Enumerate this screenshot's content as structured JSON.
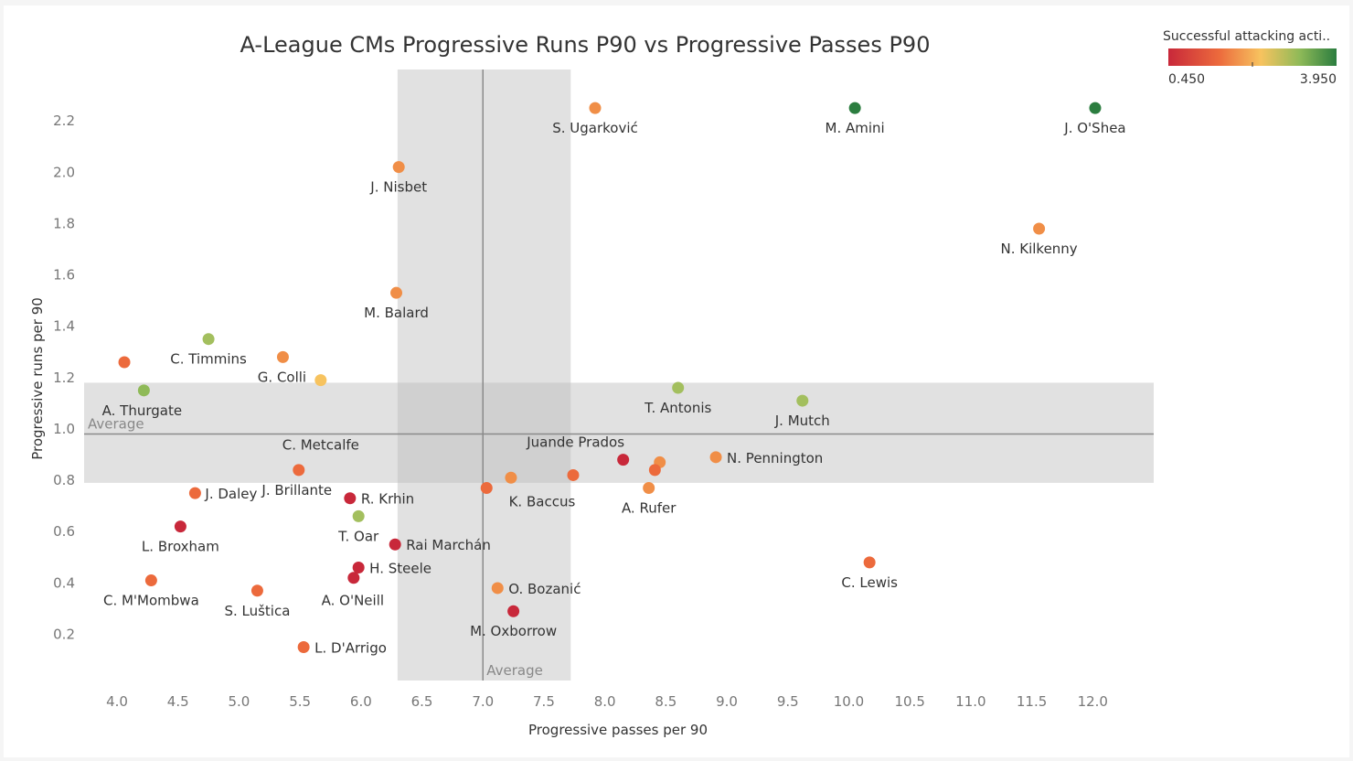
{
  "chart_data": {
    "type": "scatter",
    "title": "A-League CMs Progressive Runs P90 vs Progressive Passes P90",
    "xlabel": "Progressive passes per 90",
    "ylabel": "Progressive runs per 90",
    "xlim": [
      3.7,
      12.5
    ],
    "ylim": [
      0.02,
      2.4
    ],
    "x_ticks": [
      "4.0",
      "4.5",
      "5.0",
      "5.5",
      "6.0",
      "6.5",
      "7.0",
      "7.5",
      "8.0",
      "8.5",
      "9.0",
      "9.5",
      "10.0",
      "10.5",
      "11.0",
      "11.5",
      "12.0"
    ],
    "y_ticks": [
      "0.2",
      "0.4",
      "0.6",
      "0.8",
      "1.0",
      "1.2",
      "1.4",
      "1.6",
      "1.8",
      "2.0",
      "2.2"
    ],
    "x_average": 7.0,
    "y_average": 0.98,
    "x_band": [
      6.3,
      7.72
    ],
    "y_band": [
      0.79,
      1.18
    ],
    "average_label": "Average",
    "legend": {
      "title": "Successful attacking acti..",
      "min_label": "0.450",
      "max_label": "3.950",
      "colors": [
        "#c8283a",
        "#ec6a3c",
        "#f7c35f",
        "#8fba58",
        "#2b7d3f"
      ]
    },
    "points": [
      {
        "name": "S. Ugarković",
        "x": 7.92,
        "y": 2.25,
        "color": "#f08e47",
        "label": "S. Ugarković"
      },
      {
        "name": "M. Amini",
        "x": 10.05,
        "y": 2.25,
        "color": "#2b7d3f",
        "label": "M. Amini"
      },
      {
        "name": "J. O'Shea",
        "x": 12.02,
        "y": 2.25,
        "color": "#2b7d3f",
        "label": "J. O'Shea"
      },
      {
        "name": "J. Nisbet",
        "x": 6.31,
        "y": 2.02,
        "color": "#f08e47",
        "label": "J. Nisbet"
      },
      {
        "name": "N. Kilkenny",
        "x": 11.56,
        "y": 1.78,
        "color": "#f08e47",
        "label": "N. Kilkenny"
      },
      {
        "name": "M. Balard",
        "x": 6.29,
        "y": 1.53,
        "color": "#f08e47",
        "label": "M. Balard"
      },
      {
        "name": "C. Timmins",
        "x": 4.75,
        "y": 1.35,
        "color": "#a3bf5e",
        "label": "C. Timmins"
      },
      {
        "name": "",
        "x": 4.06,
        "y": 1.26,
        "color": "#ec6a3c",
        "label": ""
      },
      {
        "name": "G. Colli",
        "x": 5.36,
        "y": 1.28,
        "color": "#f08e47",
        "label": "G. Colli"
      },
      {
        "name": "C. Metcalfe",
        "x": 5.67,
        "y": 1.19,
        "color": "#f7c35f",
        "label": "C. Metcalfe"
      },
      {
        "name": "A. Thurgate",
        "x": 4.22,
        "y": 1.15,
        "color": "#8fba58",
        "label": "A. Thurgate"
      },
      {
        "name": "T. Antonis",
        "x": 8.6,
        "y": 1.16,
        "color": "#a3bf5e",
        "label": "T. Antonis"
      },
      {
        "name": "J. Mutch",
        "x": 9.62,
        "y": 1.11,
        "color": "#a3bf5e",
        "label": "J. Mutch"
      },
      {
        "name": "Juande Prados",
        "x": 8.15,
        "y": 0.88,
        "color": "#c8283a",
        "label": "Juande Prados"
      },
      {
        "name": "N. Pennington",
        "x": 8.91,
        "y": 0.89,
        "color": "#f08e47",
        "label": "N. Pennington"
      },
      {
        "name": "",
        "x": 8.45,
        "y": 0.87,
        "color": "#f08e47",
        "label": ""
      },
      {
        "name": "",
        "x": 8.41,
        "y": 0.84,
        "color": "#ec6a3c",
        "label": ""
      },
      {
        "name": "",
        "x": 7.74,
        "y": 0.82,
        "color": "#ec6a3c",
        "label": ""
      },
      {
        "name": "K. Baccus",
        "x": 7.23,
        "y": 0.81,
        "color": "#f08e47",
        "label": "K. Baccus"
      },
      {
        "name": "",
        "x": 7.03,
        "y": 0.77,
        "color": "#ec6a3c",
        "label": ""
      },
      {
        "name": "A. Rufer",
        "x": 8.36,
        "y": 0.77,
        "color": "#f08e47",
        "label": "A. Rufer"
      },
      {
        "name": "J. Brillante",
        "x": 5.49,
        "y": 0.84,
        "color": "#ec6a3c",
        "label": "J. Brillante"
      },
      {
        "name": "J. Daley",
        "x": 4.64,
        "y": 0.75,
        "color": "#ec6a3c",
        "label": "J. Daley"
      },
      {
        "name": "R. Krhin",
        "x": 5.91,
        "y": 0.73,
        "color": "#c8283a",
        "label": "R. Krhin"
      },
      {
        "name": "T. Oar",
        "x": 5.98,
        "y": 0.66,
        "color": "#a3bf5e",
        "label": "T. Oar"
      },
      {
        "name": "L. Broxham",
        "x": 4.52,
        "y": 0.62,
        "color": "#c8283a",
        "label": "L. Broxham"
      },
      {
        "name": "Rai Marchán",
        "x": 6.28,
        "y": 0.55,
        "color": "#c8283a",
        "label": "Rai Marchán"
      },
      {
        "name": "H. Steele",
        "x": 5.98,
        "y": 0.46,
        "color": "#c8283a",
        "label": "H. Steele"
      },
      {
        "name": "A. O'Neill",
        "x": 5.94,
        "y": 0.42,
        "color": "#c8283a",
        "label": "A. O'Neill"
      },
      {
        "name": "C. M'Mombwa",
        "x": 4.28,
        "y": 0.41,
        "color": "#ec6a3c",
        "label": "C. M'Mombwa"
      },
      {
        "name": "S. Luštica",
        "x": 5.15,
        "y": 0.37,
        "color": "#ec6a3c",
        "label": "S. Luštica"
      },
      {
        "name": "O. Bozanić",
        "x": 7.12,
        "y": 0.38,
        "color": "#f08e47",
        "label": "O. Bozanić"
      },
      {
        "name": "M. Oxborrow",
        "x": 7.25,
        "y": 0.29,
        "color": "#c8283a",
        "label": "M. Oxborrow"
      },
      {
        "name": "C. Lewis",
        "x": 10.17,
        "y": 0.48,
        "color": "#ec6a3c",
        "label": "C. Lewis"
      },
      {
        "name": "L. D'Arrigo",
        "x": 5.53,
        "y": 0.15,
        "color": "#ec6a3c",
        "label": "L. D'Arrigo"
      }
    ]
  }
}
